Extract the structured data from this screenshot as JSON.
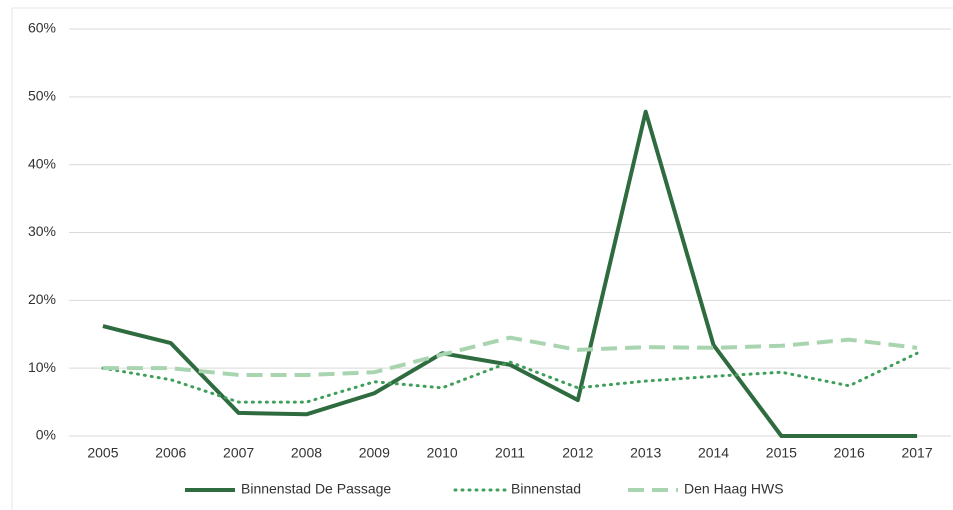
{
  "chart_data": {
    "type": "line",
    "categories": [
      "2005",
      "2006",
      "2007",
      "2008",
      "2009",
      "2010",
      "2011",
      "2012",
      "2013",
      "2014",
      "2015",
      "2016",
      "2017"
    ],
    "series": [
      {
        "name": "Binnenstad De Passage",
        "color": "#2e6b3e",
        "style": "solid",
        "values": [
          16.2,
          13.7,
          3.4,
          3.2,
          6.3,
          12.2,
          10.5,
          5.3,
          47.8,
          13.4,
          0,
          0,
          0
        ]
      },
      {
        "name": "Binnenstad",
        "color": "#3f9e5a",
        "style": "dotted",
        "values": [
          10,
          8.3,
          5,
          5,
          8,
          7.1,
          10.9,
          7.1,
          8.1,
          8.8,
          9.4,
          7.4,
          12.2
        ]
      },
      {
        "name": "Den Haag HWS",
        "color": "#a8d5b0",
        "style": "dashed",
        "values": [
          10,
          10,
          9,
          9,
          9.4,
          12,
          14.5,
          12.7,
          13.1,
          13,
          13.3,
          14.2,
          13
        ]
      }
    ],
    "ylim": [
      0,
      60
    ],
    "yticks": [
      {
        "value": 0,
        "label": "0%"
      },
      {
        "value": 10,
        "label": "10%"
      },
      {
        "value": 20,
        "label": "20%"
      },
      {
        "value": 30,
        "label": "30%"
      },
      {
        "value": 40,
        "label": "40%"
      },
      {
        "value": 50,
        "label": "50%"
      },
      {
        "value": 60,
        "label": "60%"
      }
    ],
    "grid": true,
    "legend": "bottom"
  }
}
